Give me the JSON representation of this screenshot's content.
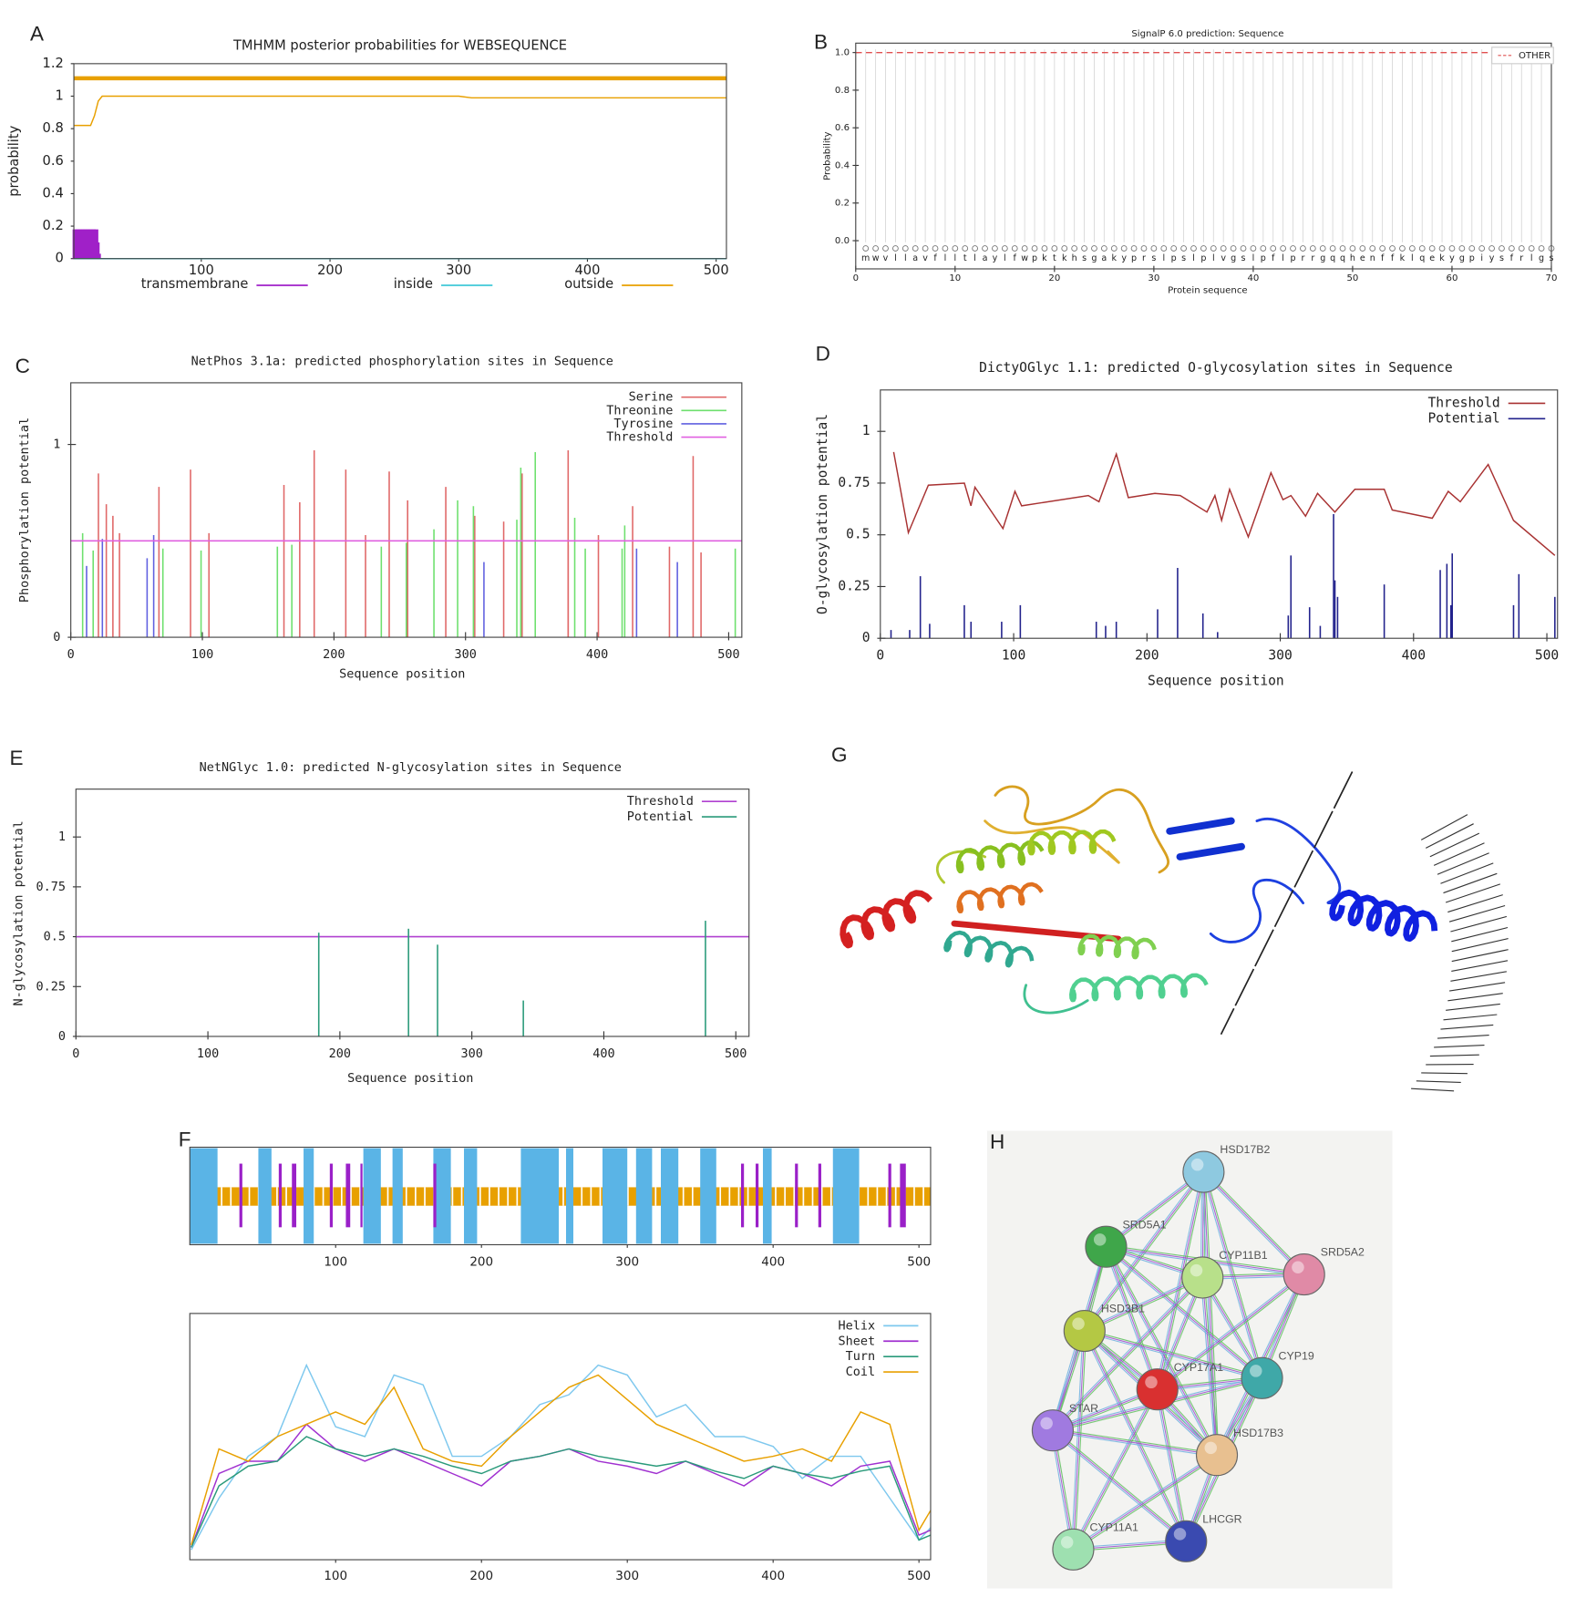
{
  "chart_data": [
    {
      "type": "line",
      "panel": "A",
      "title": "TMHMM posterior probabilities for WEBSEQUENCE",
      "ylabel": "probability",
      "xlim": [
        1,
        508
      ],
      "ylim": [
        0,
        1.2
      ],
      "xticks": [
        100,
        200,
        300,
        400,
        500
      ],
      "yticks": [
        0,
        0.2,
        0.4,
        0.6,
        0.8,
        1,
        1.2
      ],
      "legend": "bottom",
      "series": [
        {
          "name": "transmembrane",
          "color": "#a020c8",
          "kind": "spike",
          "x": [
            2,
            4,
            6,
            8,
            10,
            12,
            14,
            16,
            18,
            19,
            20
          ],
          "values": [
            0.18,
            0.18,
            0.18,
            0.18,
            0.18,
            0.18,
            0.18,
            0.18,
            0.18,
            0.1,
            0.03
          ]
        },
        {
          "name": "inside",
          "color": "#40c8d8",
          "kind": "line",
          "x": [
            1,
            508
          ],
          "values": [
            0,
            0
          ]
        },
        {
          "name": "outside",
          "color": "#e8a000",
          "kind": "line",
          "x": [
            1,
            14,
            17,
            20,
            23,
            300,
            310,
            508
          ],
          "values": [
            0.82,
            0.82,
            0.88,
            0.97,
            1,
            1,
            0.99,
            0.99
          ]
        },
        {
          "color": "#e8a000",
          "kind": "segment",
          "start": 1,
          "end": 508,
          "value": 1.11
        }
      ]
    },
    {
      "type": "line",
      "panel": "B",
      "title": "SignalP 6.0 prediction: Sequence",
      "xlabel": "Protein sequence",
      "ylabel": "Probability",
      "categories": [
        "m",
        "w",
        "v",
        "l",
        "l",
        "a",
        "v",
        "f",
        "l",
        "l",
        "t",
        "l",
        "a",
        "y",
        "l",
        "f",
        "w",
        "p",
        "k",
        "t",
        "k",
        "h",
        "s",
        "g",
        "a",
        "k",
        "y",
        "p",
        "r",
        "s",
        "l",
        "p",
        "s",
        "l",
        "p",
        "l",
        "v",
        "g",
        "s",
        "l",
        "p",
        "f",
        "l",
        "p",
        "r",
        "r",
        "g",
        "q",
        "q",
        "h",
        "e",
        "n",
        "f",
        "f",
        "k",
        "l",
        "q",
        "e",
        "k",
        "y",
        "g",
        "p",
        "i",
        "y",
        "s",
        "f",
        "r",
        "l",
        "g",
        "s"
      ],
      "xlim": [
        0,
        70
      ],
      "ylim": [
        -0.15,
        1.05
      ],
      "xticks": [
        0,
        10,
        20,
        30,
        40,
        50,
        60,
        70
      ],
      "yticks": [
        {
          "value": 0,
          "label": "0.0"
        },
        0.2,
        0.4,
        0.6,
        0.8,
        {
          "value": 1,
          "label": "1.0"
        }
      ],
      "legend": "top-right",
      "series": [
        {
          "name": "OTHER",
          "color": "#e05050",
          "kind": "line",
          "dashed": true,
          "x": [
            0,
            70
          ],
          "values": [
            1,
            1
          ]
        }
      ]
    },
    {
      "type": "spike",
      "panel": "C",
      "title": "NetPhos 3.1a: predicted phosphorylation sites in Sequence",
      "xlabel": "Sequence position",
      "ylabel": "Phosphorylation potential",
      "xlim": [
        0,
        510
      ],
      "ylim": [
        0,
        1.32
      ],
      "xticks": [
        0,
        100,
        200,
        300,
        400,
        500
      ],
      "yticks": [
        0,
        1
      ],
      "legend": "top-right",
      "series": [
        {
          "name": "Serine",
          "color": "#e06868",
          "x": [
            21,
            27,
            32,
            37,
            67,
            91,
            105,
            162,
            174,
            185,
            209,
            224,
            242,
            256,
            285,
            307,
            329,
            343,
            378,
            378,
            401,
            427,
            455,
            473,
            479
          ],
          "values": [
            0.85,
            0.69,
            0.63,
            0.54,
            0.78,
            0.87,
            0.54,
            0.79,
            0.7,
            0.97,
            0.87,
            0.53,
            0.86,
            0.71,
            0.78,
            0.63,
            0.6,
            0.85,
            0.97,
            0.48,
            0.53,
            0.68,
            0.47,
            0.94,
            0.44
          ]
        },
        {
          "name": "Threonine",
          "color": "#6ee06e",
          "x": [
            9,
            17,
            70,
            99,
            157,
            168,
            236,
            255,
            276,
            294,
            306,
            339,
            342,
            353,
            383,
            391,
            419,
            421,
            505
          ],
          "values": [
            0.54,
            0.45,
            0.46,
            0.45,
            0.47,
            0.48,
            0.47,
            0.49,
            0.56,
            0.71,
            0.68,
            0.61,
            0.88,
            0.96,
            0.62,
            0.46,
            0.46,
            0.58,
            0.46
          ]
        },
        {
          "name": "Tyrosine",
          "color": "#6060e0",
          "x": [
            12,
            24,
            58,
            63,
            314,
            430,
            461
          ],
          "values": [
            0.37,
            0.51,
            0.41,
            0.53,
            0.39,
            0.46,
            0.39
          ]
        },
        {
          "name": "Threshold",
          "color": "#e060e0",
          "kind": "hline",
          "value": 0.5
        }
      ]
    },
    {
      "type": "spike",
      "panel": "D",
      "title": "DictyOGlyc 1.1: predicted O-glycosylation sites in Sequence",
      "xlabel": "Sequence position",
      "ylabel": "O-glycosylation potential",
      "xlim": [
        0,
        508
      ],
      "ylim": [
        0,
        1.2
      ],
      "xticks": [
        0,
        100,
        200,
        300,
        400,
        500
      ],
      "yticks": [
        0,
        0.25,
        0.5,
        0.75,
        1
      ],
      "legend": "top-right",
      "series": [
        {
          "name": "Threshold",
          "color": "#a83232",
          "kind": "line",
          "x": [
            10,
            21,
            36,
            63,
            68,
            71,
            92,
            101,
            106,
            156,
            164,
            177,
            186,
            206,
            225,
            245,
            251,
            256,
            262,
            276,
            293,
            302,
            308,
            319,
            328,
            341,
            356,
            378,
            384,
            414,
            426,
            435,
            456,
            475,
            506
          ],
          "values": [
            0.9,
            0.51,
            0.74,
            0.75,
            0.64,
            0.73,
            0.53,
            0.71,
            0.64,
            0.69,
            0.66,
            0.89,
            0.68,
            0.7,
            0.69,
            0.61,
            0.69,
            0.57,
            0.72,
            0.49,
            0.8,
            0.67,
            0.69,
            0.59,
            0.7,
            0.61,
            0.72,
            0.72,
            0.62,
            0.58,
            0.71,
            0.66,
            0.84,
            0.57,
            0.4
          ]
        },
        {
          "name": "Potential",
          "color": "#22228c",
          "x": [
            8,
            22,
            30,
            37,
            63,
            68,
            91,
            105,
            162,
            169,
            177,
            208,
            223,
            242,
            253,
            306,
            308,
            322,
            330,
            340,
            341,
            343,
            378,
            420,
            425,
            428,
            429,
            475,
            479,
            506
          ],
          "values": [
            0.04,
            0.04,
            0.3,
            0.07,
            0.16,
            0.08,
            0.08,
            0.16,
            0.08,
            0.06,
            0.08,
            0.14,
            0.34,
            0.12,
            0.03,
            0.11,
            0.4,
            0.15,
            0.06,
            0.6,
            0.28,
            0.2,
            0.26,
            0.33,
            0.36,
            0.16,
            0.41,
            0.16,
            0.31,
            0.2
          ]
        }
      ]
    },
    {
      "type": "spike",
      "panel": "E",
      "title": "NetNGlyc 1.0: predicted N-glycosylation sites in Sequence",
      "xlabel": "Sequence position",
      "ylabel": "N-glycosylation potential",
      "xlim": [
        0,
        510
      ],
      "ylim": [
        0,
        1.24
      ],
      "xticks": [
        0,
        100,
        200,
        300,
        400,
        500
      ],
      "yticks": [
        0,
        0.25,
        0.5,
        0.75,
        1
      ],
      "legend": "top-right",
      "series": [
        {
          "name": "Threshold",
          "color": "#b040d0",
          "kind": "hline",
          "value": 0.5
        },
        {
          "name": "Potential",
          "color": "#2a9a7a",
          "x": [
            184,
            252,
            274,
            339,
            477
          ],
          "values": [
            0.52,
            0.54,
            0.46,
            0.18,
            0.58
          ]
        }
      ]
    },
    {
      "type": "track",
      "panel": "F",
      "xlim": [
        0,
        508
      ],
      "xticks": [
        100,
        200,
        300,
        400,
        500
      ],
      "series": [
        {
          "color": "#5ab4e6",
          "segments": [
            [
              0,
              19
            ],
            [
              47,
              56
            ],
            [
              78,
              85
            ],
            [
              119,
              131
            ],
            [
              139,
              146
            ],
            [
              167,
              179
            ],
            [
              188,
              197
            ],
            [
              227,
              253
            ],
            [
              258,
              263
            ],
            [
              283,
              300
            ],
            [
              306,
              317
            ],
            [
              323,
              335
            ],
            [
              350,
              361
            ],
            [
              393,
              399
            ],
            [
              441,
              459
            ]
          ]
        },
        {
          "color": "#9a20c8",
          "segments": [
            [
              34,
              36
            ],
            [
              61,
              63
            ],
            [
              70,
              73
            ],
            [
              96,
              98
            ],
            [
              107,
              110
            ],
            [
              117,
              118
            ],
            [
              167,
              169
            ],
            [
              378,
              380
            ],
            [
              388,
              390
            ],
            [
              415,
              417
            ],
            [
              431,
              433
            ],
            [
              479,
              481
            ],
            [
              487,
              491
            ]
          ]
        }
      ]
    },
    {
      "type": "line",
      "xlim": [
        0,
        508
      ],
      "ylim": [
        0,
        1
      ],
      "xticks": [
        100,
        200,
        300,
        400,
        500
      ],
      "legend": "top-right",
      "x": [
        1,
        20,
        40,
        60,
        80,
        100,
        120,
        140,
        160,
        180,
        200,
        220,
        240,
        260,
        280,
        300,
        320,
        340,
        360,
        380,
        400,
        420,
        440,
        460,
        480,
        500,
        508
      ],
      "series": [
        {
          "name": "Helix",
          "color": "#7ec8ee",
          "values": [
            0.04,
            0.25,
            0.42,
            0.5,
            0.79,
            0.54,
            0.5,
            0.75,
            0.71,
            0.42,
            0.42,
            0.5,
            0.63,
            0.67,
            0.79,
            0.75,
            0.58,
            0.63,
            0.5,
            0.5,
            0.46,
            0.33,
            0.42,
            0.42,
            0.25,
            0.08,
            0.13
          ]
        },
        {
          "name": "Sheet",
          "color": "#a030d0",
          "values": [
            0.05,
            0.35,
            0.4,
            0.4,
            0.55,
            0.45,
            0.4,
            0.45,
            0.4,
            0.35,
            0.3,
            0.4,
            0.42,
            0.45,
            0.4,
            0.38,
            0.35,
            0.4,
            0.35,
            0.3,
            0.38,
            0.35,
            0.3,
            0.38,
            0.4,
            0.1,
            0.12
          ]
        },
        {
          "name": "Turn",
          "color": "#2a9a7a",
          "values": [
            0.05,
            0.3,
            0.38,
            0.4,
            0.5,
            0.45,
            0.42,
            0.45,
            0.42,
            0.38,
            0.35,
            0.4,
            0.42,
            0.45,
            0.42,
            0.4,
            0.38,
            0.4,
            0.36,
            0.33,
            0.38,
            0.35,
            0.33,
            0.36,
            0.38,
            0.08,
            0.1
          ]
        },
        {
          "name": "Coil",
          "color": "#e8a000",
          "values": [
            0.06,
            0.45,
            0.4,
            0.5,
            0.55,
            0.6,
            0.55,
            0.7,
            0.45,
            0.4,
            0.38,
            0.5,
            0.6,
            0.7,
            0.75,
            0.65,
            0.55,
            0.5,
            0.45,
            0.4,
            0.42,
            0.45,
            0.4,
            0.6,
            0.55,
            0.12,
            0.2
          ]
        }
      ]
    }
  ],
  "structure": {
    "panel": "G"
  },
  "network": {
    "panel": "H",
    "nodes": [
      {
        "label": "HSD17B2",
        "color": "#8ec9e0"
      },
      {
        "label": "SRD5A1",
        "color": "#3fa64a"
      },
      {
        "label": "CYP11B1",
        "color": "#b8e08a"
      },
      {
        "label": "SRD5A2",
        "color": "#e08aa6"
      },
      {
        "label": "HSD3B1",
        "color": "#b4c844"
      },
      {
        "label": "CYP17A1",
        "color": "#d93030"
      },
      {
        "label": "CYP19",
        "color": "#3fa8a8"
      },
      {
        "label": "STAR",
        "color": "#a07ae0"
      },
      {
        "label": "HSD17B3",
        "color": "#e8c090"
      },
      {
        "label": "LHCGR",
        "color": "#3a4ab0"
      },
      {
        "label": "CYP11A1",
        "color": "#9ee0b0"
      }
    ]
  }
}
